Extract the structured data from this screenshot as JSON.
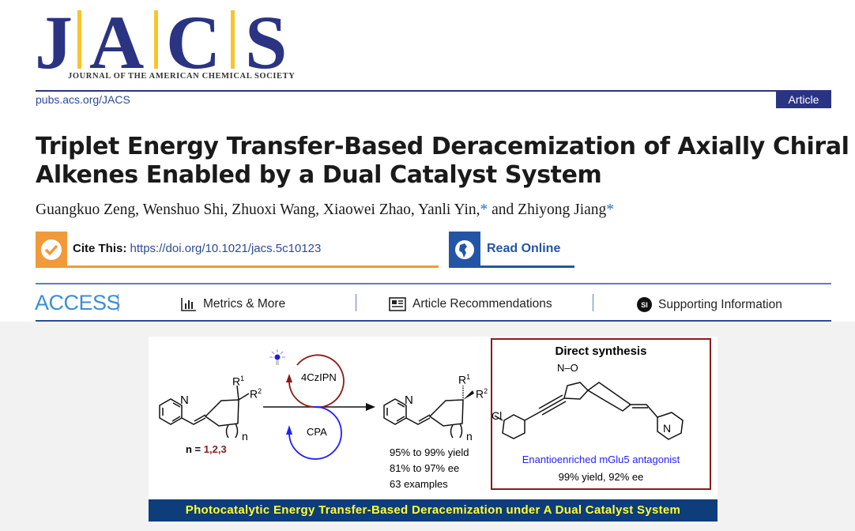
{
  "journal": {
    "logo_letters": [
      "J",
      "A",
      "C",
      "S"
    ],
    "name": "JOURNAL OF THE AMERICAN CHEMICAL SOCIETY",
    "url": "pubs.acs.org/JACS",
    "article_type": "Article",
    "colors": {
      "navy": "#2b3483",
      "yellow": "#f7c52b"
    }
  },
  "article": {
    "title_line1": "Triplet Energy Transfer-Based Deracemization of Axially Chiral",
    "title_line2": "Alkenes Enabled by a Dual Catalyst System",
    "authors_plain": "Guangkuo Zeng, Wenshuo Shi, Zhuoxi Wang, Xiaowei Zhao, Yanli Yin,",
    "author_star": "*",
    "authors_and": " and Zhiyong Jiang"
  },
  "cite": {
    "label": "Cite This:",
    "doi": "https://doi.org/10.1021/jacs.5c10123",
    "icon": "checkmark-icon",
    "color": "#f09a3a"
  },
  "read_online": {
    "label": "Read Online",
    "icon": "globe-icon",
    "color": "#2355a6"
  },
  "access": {
    "label": "ACCESS",
    "items": [
      {
        "label": "Metrics & More",
        "icon": "bar-chart-icon"
      },
      {
        "label": "Article Recommendations",
        "icon": "newspaper-icon"
      },
      {
        "label": "Supporting Information",
        "icon": "si-icon",
        "badge": "SI"
      }
    ]
  },
  "toc_graphic": {
    "n_label": "n = ",
    "n_values": "1,2,3",
    "catalyst_top": "4CzIPN",
    "catalyst_bottom": "CPA",
    "atoms": {
      "N": "N",
      "R1": "R",
      "R1_sup": "1",
      "R2": "R",
      "R2_sup": "2",
      "n": "n",
      "Cl": "Cl",
      "NO": "N–O"
    },
    "results": [
      "95% to 99% yield",
      "81% to 97% ee",
      "63 examples"
    ],
    "box_title": "Direct synthesis",
    "box_caption": "Enantioenriched mGlu5 antagonist",
    "box_result": "99% yield, 92% ee",
    "banner": "Photocatalytic Energy Transfer-Based Deracemization under A Dual Catalyst System",
    "colors": {
      "banner_bg": "#0d3d7a",
      "banner_text": "#ffff33",
      "dark_red": "#8b1a1a",
      "blue": "#1f1fff"
    }
  }
}
